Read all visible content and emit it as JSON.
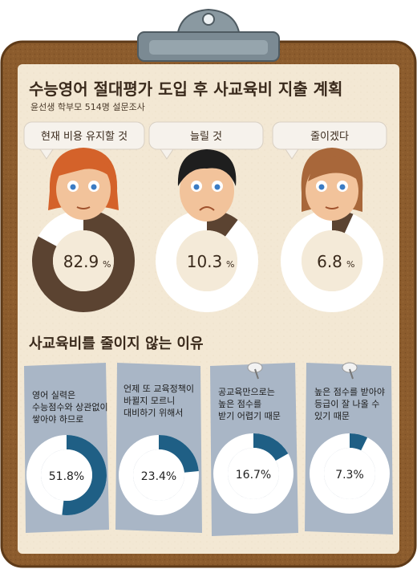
{
  "title": "수능영어 절대평가 도입 후 사교육비 지출 계획",
  "subtitle": "윤선생 학부모 514명 설문조사",
  "section2_title": "사교육비를 줄이지 않는 이유",
  "colors": {
    "board": "#8a5a2b",
    "board_edge": "#5e3a18",
    "paper": "#f4ead8",
    "ring_bg": "#ffffff",
    "ring_fill_top": "#5b4331",
    "ring_fill_bottom": "#1f5f85",
    "card": "#aab7c7",
    "bubble": "#f6f2ec"
  },
  "chart_data": [
    {
      "type": "pie",
      "title": "수능영어 절대평가 도입 후 사교육비 지출 계획",
      "categories": [
        "현재 비용 유지할 것",
        "늘릴 것",
        "줄이겠다"
      ],
      "values": [
        82.9,
        10.3,
        6.8
      ],
      "labels": [
        "82.9",
        "10.3",
        "6.8"
      ],
      "unit": "%"
    },
    {
      "type": "pie",
      "title": "사교육비를 줄이지 않는 이유",
      "categories": [
        [
          "영어 실력은",
          "수능점수와 상관없이",
          "쌓아야 하므로"
        ],
        [
          "언제 또 교육정책이",
          "바뀔지 모르니",
          "대비하기 위해서"
        ],
        [
          "공교육만으로는",
          "높은 점수를",
          "받기 어렵기 때문"
        ],
        [
          "높은 점수를 받아야",
          "등급이 잘 나올 수",
          "있기 때문"
        ]
      ],
      "values": [
        51.8,
        23.4,
        16.7,
        7.3
      ],
      "labels": [
        "51.8%",
        "23.4%",
        "16.7%",
        "7.3%"
      ]
    }
  ]
}
